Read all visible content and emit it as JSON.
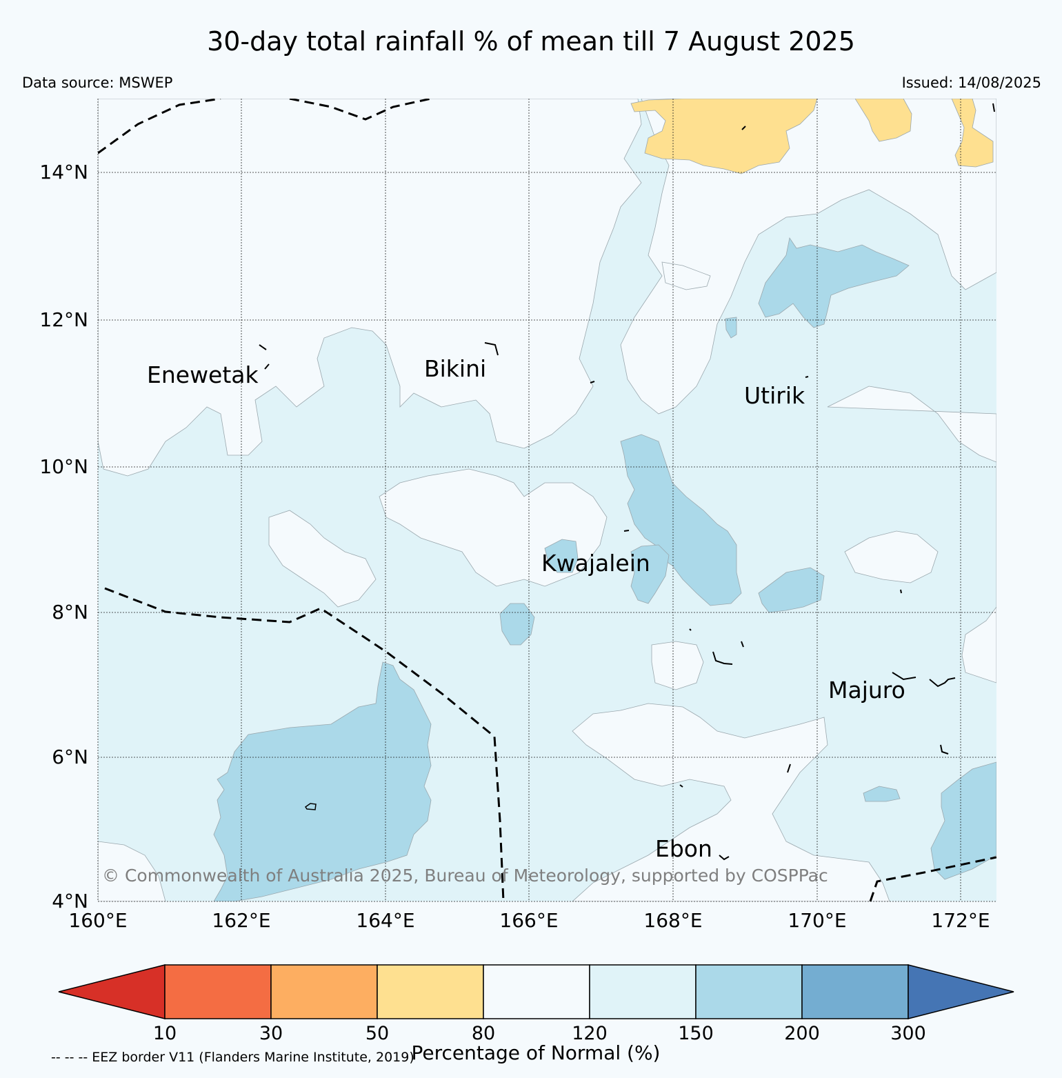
{
  "title": "30-day total rainfall % of mean till 7 August 2025",
  "data_source": "Data source: MSWEP",
  "issued": "Issued: 14/08/2025",
  "map": {
    "lat_labels": [
      "14°N",
      "12°N",
      "10°N",
      "8°N",
      "6°N",
      "4°N"
    ],
    "lon_labels": [
      "160°E",
      "162°E",
      "164°E",
      "166°E",
      "168°E",
      "170°E",
      "172°E"
    ],
    "places": [
      "Enewetak",
      "Bikini",
      "Utirik",
      "Kwajalein",
      "Majuro",
      "Ebon"
    ],
    "copyright": "© Commonwealth of Australia 2025, Bureau of Meteorology, supported by COSPPac"
  },
  "colorbar": {
    "ticks": [
      "10",
      "30",
      "50",
      "80",
      "120",
      "150",
      "200",
      "300"
    ],
    "colors": [
      "#d73027",
      "#f46d43",
      "#fdae61",
      "#fee090",
      "#f5fafd",
      "#e0f3f8",
      "#abd9e9",
      "#74add1",
      "#4575b4"
    ],
    "title": "Percentage of Normal (%)"
  },
  "eez_note": "-- -- -- EEZ border V11 (Flanders Marine Institute, 2019)"
}
